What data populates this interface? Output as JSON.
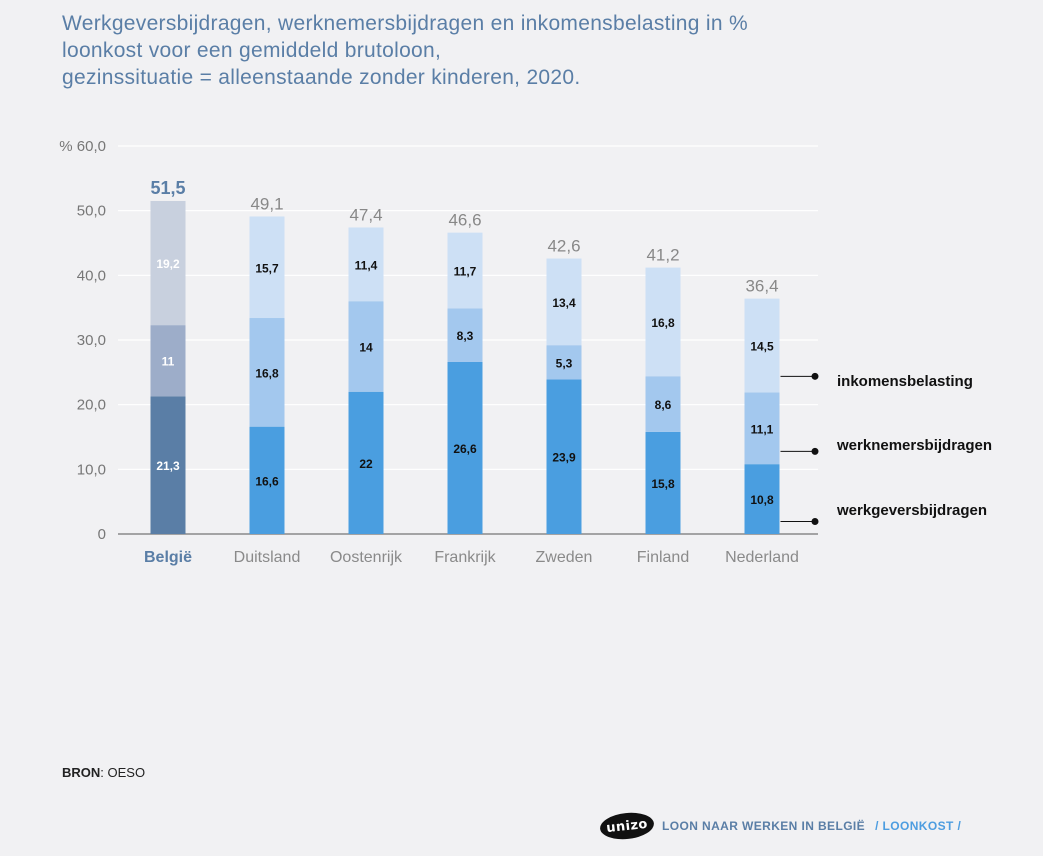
{
  "title_lines": [
    "Werkgeversbijdragen, werknemersbijdragen en inkomensbelasting in %",
    "loonkost voor een gemiddeld brutoloon,",
    "gezinssituatie = alleenstaande zonder kinderen, 2020."
  ],
  "source": {
    "label": "BRON",
    "value": ": OESO"
  },
  "footer": {
    "logo_text": "unizo",
    "main": "LOON NAAR WERKEN IN BELGIË",
    "sub": "/ LOONKOST /"
  },
  "colors": {
    "highlight": [
      "#5a7ea6",
      "#9dadc9",
      "#c8d0de"
    ],
    "normal": [
      "#4a9ee0",
      "#a3c8ee",
      "#cde0f5"
    ],
    "highlight_label": "#5a7ea6",
    "total_label": "#888888",
    "grid": "#ffffff",
    "axis": "#555555"
  },
  "chart_data": {
    "type": "bar",
    "stacked": true,
    "title": "Werkgeversbijdragen, werknemersbijdragen en inkomensbelasting in % loonkost voor een gemiddeld brutoloon, gezinssituatie = alleenstaande zonder kinderen, 2020.",
    "categories": [
      "België",
      "Duitsland",
      "Oostenrijk",
      "Frankrijk",
      "Zweden",
      "Finland",
      "Nederland"
    ],
    "highlight_category": "België",
    "series": [
      {
        "name": "werkgeversbijdragen",
        "values": [
          21.3,
          16.6,
          22,
          26.6,
          23.9,
          15.8,
          10.8
        ],
        "labels": [
          "21,3",
          "16,6",
          "22",
          "26,6",
          "23,9",
          "15,8",
          "10,8"
        ]
      },
      {
        "name": "werknemersbijdragen",
        "values": [
          11,
          16.8,
          14,
          8.3,
          5.3,
          8.6,
          11.1
        ],
        "labels": [
          "11",
          "16,8",
          "14",
          "8,3",
          "5,3",
          "8,6",
          "11,1"
        ]
      },
      {
        "name": "inkomensbelasting",
        "values": [
          19.2,
          15.7,
          11.4,
          11.7,
          13.4,
          16.8,
          14.5
        ],
        "labels": [
          "19,2",
          "15,7",
          "11,4",
          "11,7",
          "13,4",
          "16,8",
          "14,5"
        ]
      }
    ],
    "totals": [
      51.5,
      49.1,
      47.4,
      46.6,
      42.6,
      41.2,
      36.4
    ],
    "total_labels": [
      "51,5",
      "49,1",
      "47,4",
      "46,6",
      "42,6",
      "41,2",
      "36,4"
    ],
    "ylim": [
      0,
      60
    ],
    "yticks": [
      0,
      10,
      20,
      30,
      40,
      50,
      60
    ],
    "ytick_labels": [
      "0",
      "10,0",
      "20,0",
      "30,0",
      "40,0",
      "50,0",
      "% 60,0"
    ],
    "legend_position": "right",
    "grid": true
  }
}
